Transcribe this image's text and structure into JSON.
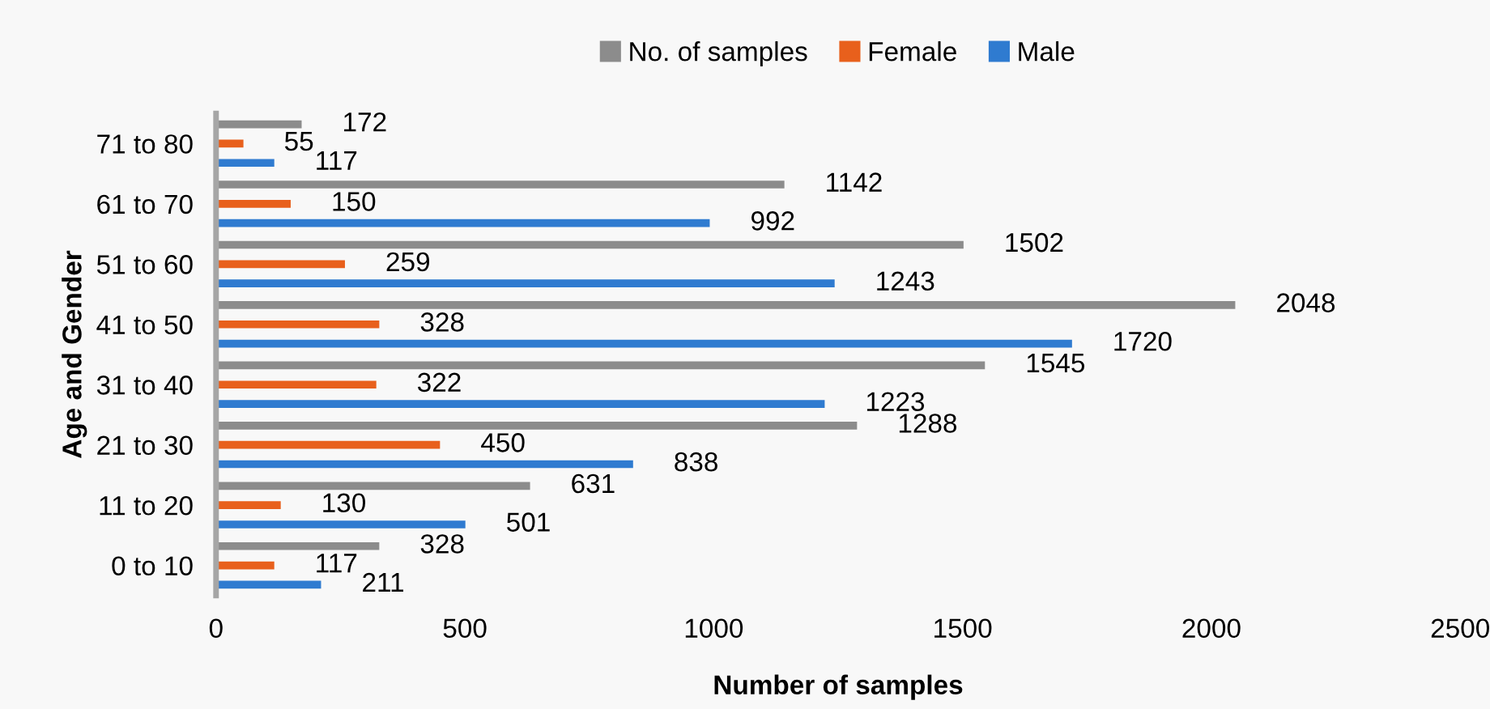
{
  "chart_data": {
    "type": "bar",
    "orientation": "horizontal",
    "xlabel": "Number of samples",
    "ylabel": "Age and Gender",
    "categories": [
      "71 to 80",
      "61 to 70",
      "51 to 60",
      "41 to 50",
      "31 to 40",
      "21 to 30",
      "11 to 20",
      "0 to 10"
    ],
    "series": [
      {
        "name": "No. of samples",
        "color": "#8c8c8c",
        "values": [
          172,
          1142,
          1502,
          2048,
          1545,
          1288,
          631,
          328
        ]
      },
      {
        "name": "Female",
        "color": "#e8601c",
        "values": [
          55,
          150,
          259,
          328,
          322,
          450,
          130,
          117
        ]
      },
      {
        "name": "Male",
        "color": "#2f7bd0",
        "values": [
          117,
          992,
          1243,
          1720,
          1223,
          838,
          501,
          211
        ]
      }
    ],
    "xlim": [
      0,
      2500
    ],
    "xticks": [
      0,
      500,
      1000,
      1500,
      2000,
      2500
    ],
    "data_labels": true,
    "grid": false,
    "legend": "top"
  }
}
